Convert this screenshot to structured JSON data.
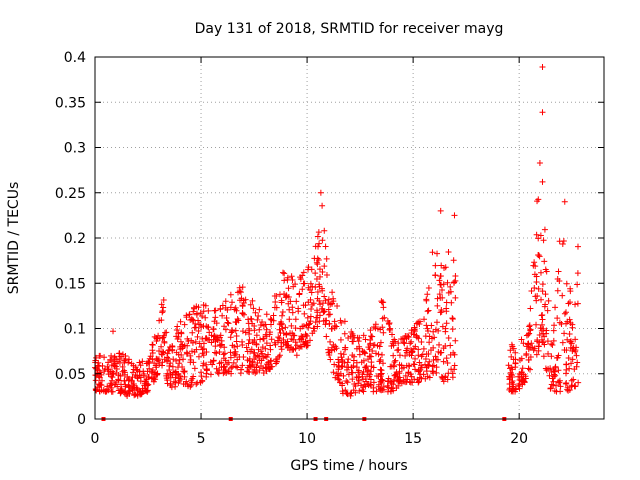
{
  "chart_data": {
    "type": "scatter",
    "title": "Day 131 of 2018, SRMTID for receiver mayg",
    "xlabel": "GPS time / hours",
    "ylabel": "SRMTID / TECUs",
    "xlim": [
      0,
      24
    ],
    "ylim": [
      0,
      0.4
    ],
    "x_ticks": [
      0,
      5,
      10,
      15,
      20
    ],
    "x_tick_labels": [
      "0",
      "5",
      "10",
      "15",
      "20"
    ],
    "y_ticks": [
      0,
      0.05,
      0.1,
      0.15,
      0.2,
      0.25,
      0.3,
      0.35,
      0.4
    ],
    "y_tick_labels": [
      "0",
      "0.05",
      "0.1",
      "0.15",
      "0.2",
      "0.25",
      "0.3",
      "0.35",
      "0.4"
    ],
    "grid": true,
    "marker": "+",
    "series": [
      {
        "name": "SRMTID",
        "color": "#ff0000",
        "envelope": [
          [
            0.0,
            0.03,
            0.07
          ],
          [
            0.5,
            0.03,
            0.07
          ],
          [
            1.0,
            0.03,
            0.075
          ],
          [
            1.5,
            0.025,
            0.07
          ],
          [
            2.0,
            0.025,
            0.065
          ],
          [
            2.5,
            0.03,
            0.065
          ],
          [
            3.0,
            0.05,
            0.11
          ],
          [
            3.2,
            0.06,
            0.14
          ],
          [
            3.5,
            0.03,
            0.09
          ],
          [
            4.0,
            0.04,
            0.11
          ],
          [
            4.5,
            0.035,
            0.12
          ],
          [
            5.0,
            0.04,
            0.13
          ],
          [
            5.5,
            0.05,
            0.12
          ],
          [
            6.0,
            0.05,
            0.13
          ],
          [
            6.5,
            0.05,
            0.14
          ],
          [
            7.0,
            0.05,
            0.16
          ],
          [
            7.5,
            0.05,
            0.13
          ],
          [
            8.0,
            0.05,
            0.12
          ],
          [
            8.5,
            0.06,
            0.14
          ],
          [
            9.0,
            0.08,
            0.17
          ],
          [
            9.5,
            0.07,
            0.15
          ],
          [
            10.0,
            0.08,
            0.17
          ],
          [
            10.5,
            0.1,
            0.2
          ],
          [
            10.7,
            0.12,
            0.245
          ],
          [
            11.0,
            0.07,
            0.16
          ],
          [
            11.5,
            0.03,
            0.12
          ],
          [
            12.0,
            0.025,
            0.1
          ],
          [
            12.5,
            0.03,
            0.09
          ],
          [
            13.0,
            0.03,
            0.1
          ],
          [
            13.5,
            0.03,
            0.14
          ],
          [
            14.0,
            0.03,
            0.1
          ],
          [
            14.5,
            0.04,
            0.09
          ],
          [
            15.0,
            0.04,
            0.1
          ],
          [
            15.5,
            0.04,
            0.12
          ],
          [
            16.0,
            0.05,
            0.2
          ],
          [
            16.5,
            0.04,
            0.17
          ],
          [
            17.0,
            0.04,
            0.22
          ],
          [
            19.5,
            0.03,
            0.09
          ],
          [
            20.0,
            0.03,
            0.08
          ],
          [
            20.5,
            0.05,
            0.12
          ],
          [
            21.0,
            0.08,
            0.3
          ],
          [
            21.5,
            0.03,
            0.1
          ],
          [
            22.0,
            0.03,
            0.23
          ],
          [
            22.5,
            0.03,
            0.13
          ],
          [
            22.8,
            0.04,
            0.2
          ]
        ],
        "outliers": [
          [
            21.1,
            0.389
          ],
          [
            21.1,
            0.339
          ],
          [
            21.1,
            0.262
          ],
          [
            0.85,
            0.097
          ],
          [
            10.65,
            0.25
          ],
          [
            16.3,
            0.23
          ],
          [
            16.95,
            0.225
          ],
          [
            22.15,
            0.24
          ]
        ],
        "zero_points": [
          0.4,
          6.4,
          10.4,
          10.9,
          12.7,
          19.3
        ]
      }
    ]
  }
}
